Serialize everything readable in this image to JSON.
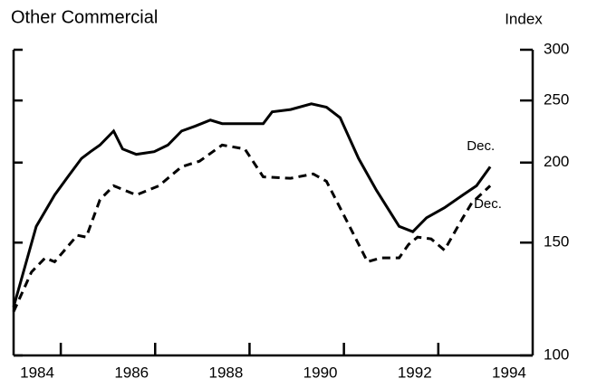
{
  "chart_data": {
    "type": "line",
    "title": "Other Commercial",
    "y_axis_label": "Index",
    "log_scale_y": true,
    "xlim": [
      1984,
      1995
    ],
    "ylim": [
      100,
      300
    ],
    "yticks": [
      100,
      150,
      200,
      250,
      300
    ],
    "xticks": [
      {
        "value": 1984.5,
        "label": "1984"
      },
      {
        "value": 1986.5,
        "label": "1986"
      },
      {
        "value": 1988.5,
        "label": "1988"
      },
      {
        "value": 1990.5,
        "label": "1990"
      },
      {
        "value": 1992.5,
        "label": "1992"
      },
      {
        "value": 1994.5,
        "label": "1994"
      }
    ],
    "minor_xticks": [
      1985,
      1987,
      1989,
      1991,
      1993
    ],
    "series": [
      {
        "name": "Solid",
        "color": "#000000",
        "dash": false,
        "x": [
          1984.0,
          1984.48,
          1984.87,
          1985.15,
          1985.44,
          1985.63,
          1985.83,
          1986.12,
          1986.31,
          1986.6,
          1986.98,
          1987.27,
          1987.56,
          1987.85,
          1988.17,
          1988.42,
          1988.9,
          1989.29,
          1989.48,
          1989.87,
          1990.31,
          1990.63,
          1990.92,
          1991.31,
          1991.69,
          1992.17,
          1992.46,
          1992.75,
          1993.13,
          1993.52,
          1993.81,
          1994.1
        ],
        "values": [
          119,
          159,
          178,
          190,
          203,
          208,
          213,
          224,
          210,
          206,
          208,
          213,
          224,
          228,
          233,
          230,
          230,
          230,
          240,
          242,
          247,
          244,
          235,
          203,
          181,
          159,
          156,
          164,
          170,
          178,
          184,
          197
        ]
      },
      {
        "name": "Dashed",
        "color": "#000000",
        "dash": true,
        "x": [
          1984.0,
          1984.38,
          1984.67,
          1984.87,
          1985.35,
          1985.54,
          1985.83,
          1986.12,
          1986.6,
          1987.08,
          1987.56,
          1987.94,
          1988.42,
          1988.9,
          1989.29,
          1989.87,
          1990.35,
          1990.63,
          1991.12,
          1991.5,
          1991.79,
          1992.17,
          1992.37,
          1992.56,
          1992.85,
          1993.13,
          1993.52,
          1993.71,
          1994.1
        ],
        "values": [
          117,
          135,
          142,
          140,
          154,
          153,
          175,
          184,
          178,
          184,
          197,
          201,
          213,
          210,
          190,
          189,
          192,
          187,
          159,
          140,
          142,
          142,
          149,
          153,
          152,
          146,
          164,
          173,
          184
        ]
      }
    ],
    "annotations": [
      {
        "text": "Dec.",
        "x": 1993.9,
        "y": 212
      },
      {
        "text": "Dec.",
        "x": 1994.05,
        "y": 172
      }
    ]
  }
}
